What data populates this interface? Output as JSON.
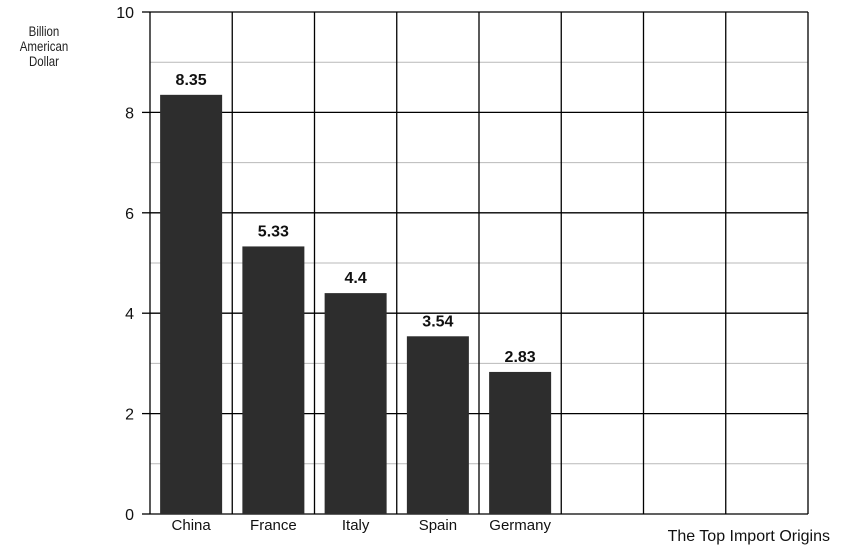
{
  "chart_data": {
    "type": "bar",
    "title": "",
    "ylabel": [
      "Billion",
      "American",
      "Dollar"
    ],
    "xlabel": "The Top Import Origins",
    "categories": [
      "China",
      "France",
      "Italy",
      "Spain",
      "Germany"
    ],
    "values": [
      8.35,
      5.33,
      4.4,
      3.54,
      2.83
    ],
    "data_labels": [
      "8.35",
      "5.33",
      "4.4",
      "3.54",
      "2.83"
    ],
    "ylim": [
      0,
      10
    ],
    "yticks": [
      "0",
      "2",
      "4",
      "6",
      "8",
      "10"
    ],
    "grid": true,
    "bar_color": "#2d2d2d",
    "grid_color": "#000000"
  }
}
